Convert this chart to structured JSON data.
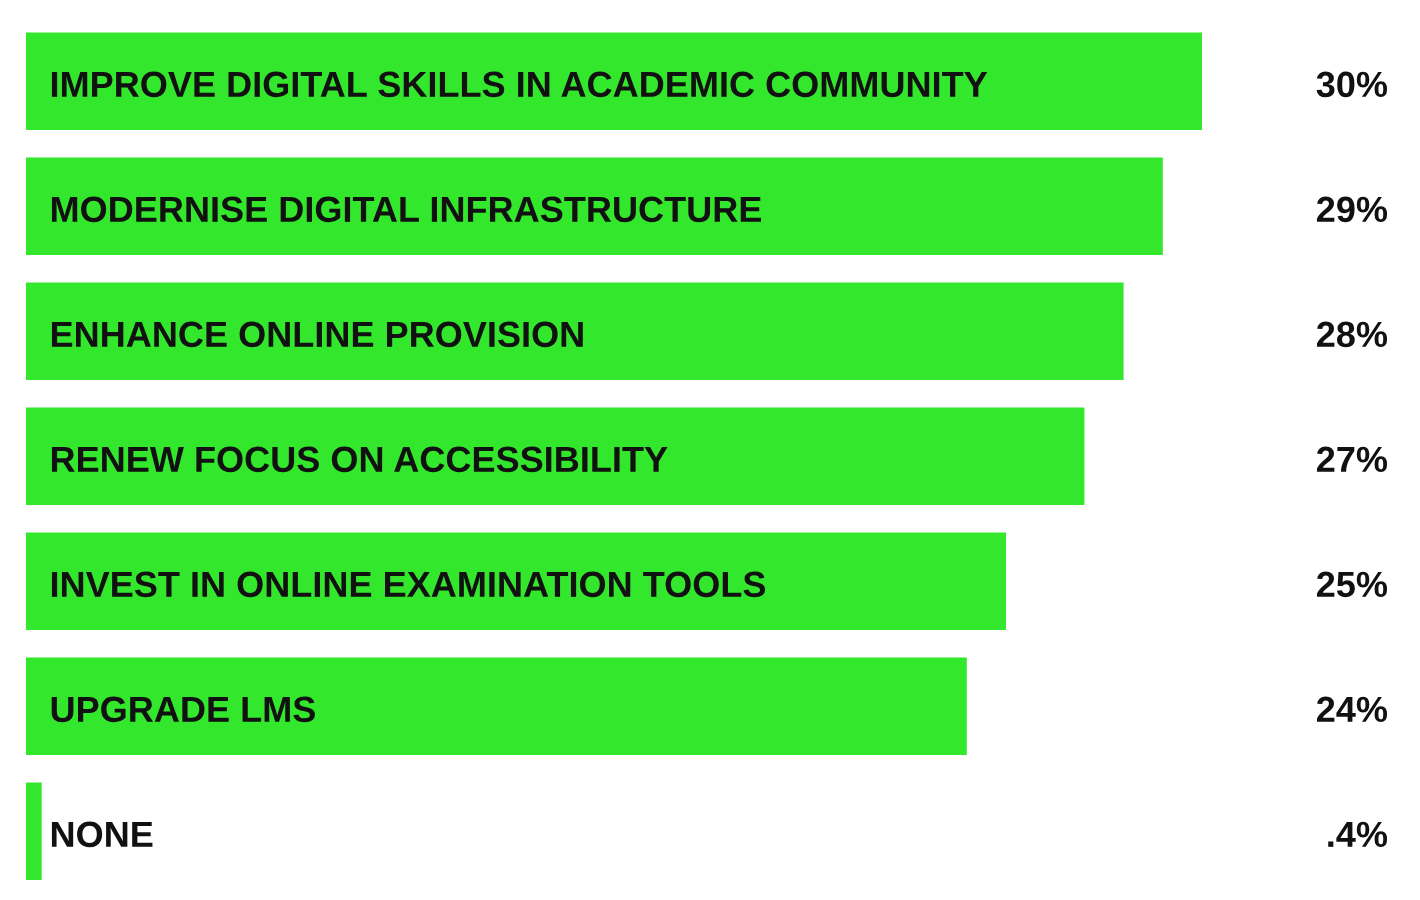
{
  "chart_data": {
    "type": "bar",
    "orientation": "horizontal",
    "categories": [
      "IMPROVE DIGITAL SKILLS IN ACADEMIC COMMUNITY",
      "MODERNISE DIGITAL INFRASTRUCTURE",
      "ENHANCE ONLINE PROVISION",
      "RENEW FOCUS ON ACCESSIBILITY",
      "INVEST IN ONLINE EXAMINATION TOOLS",
      "UPGRADE LMS",
      "NONE"
    ],
    "values": [
      30,
      29,
      28,
      27,
      25,
      24,
      0.4
    ],
    "value_labels": [
      "30%",
      "29%",
      "28%",
      "27%",
      "25%",
      "24%",
      ".4%"
    ],
    "color": "#33e82c"
  }
}
